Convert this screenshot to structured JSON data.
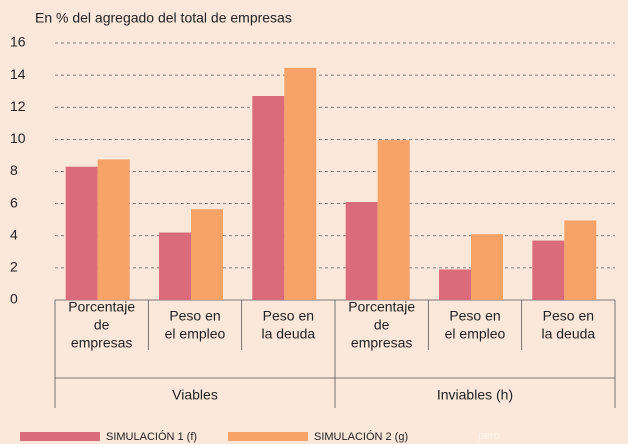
{
  "chart_data": {
    "type": "bar",
    "title": "En % del agregado del total de empresas",
    "categories": [
      [
        "Porcentaje",
        "de",
        "empresas"
      ],
      [
        "Peso en",
        "el empleo"
      ],
      [
        "Peso en",
        "la deuda"
      ],
      [
        "Porcentaje",
        "de",
        "empresas"
      ],
      [
        "Peso en",
        "el empleo"
      ],
      [
        "Peso en",
        "la deuda"
      ]
    ],
    "groups": [
      "Viables",
      "Inviables (h)"
    ],
    "series": [
      {
        "name": "SIMULACIÓN 1 (f)",
        "color": "#d96b7b",
        "values": [
          8.3,
          4.2,
          12.7,
          6.1,
          1.9,
          3.7
        ]
      },
      {
        "name": "SIMULACIÓN 2 (g)",
        "color": "#f7a267",
        "values": [
          8.75,
          5.65,
          14.45,
          9.95,
          4.1,
          4.95
        ]
      }
    ],
    "ylim": [
      0,
      16
    ],
    "yticks": [
      0,
      2,
      4,
      6,
      8,
      10,
      12,
      14,
      16
    ],
    "grid": true,
    "annotation": "pero"
  }
}
